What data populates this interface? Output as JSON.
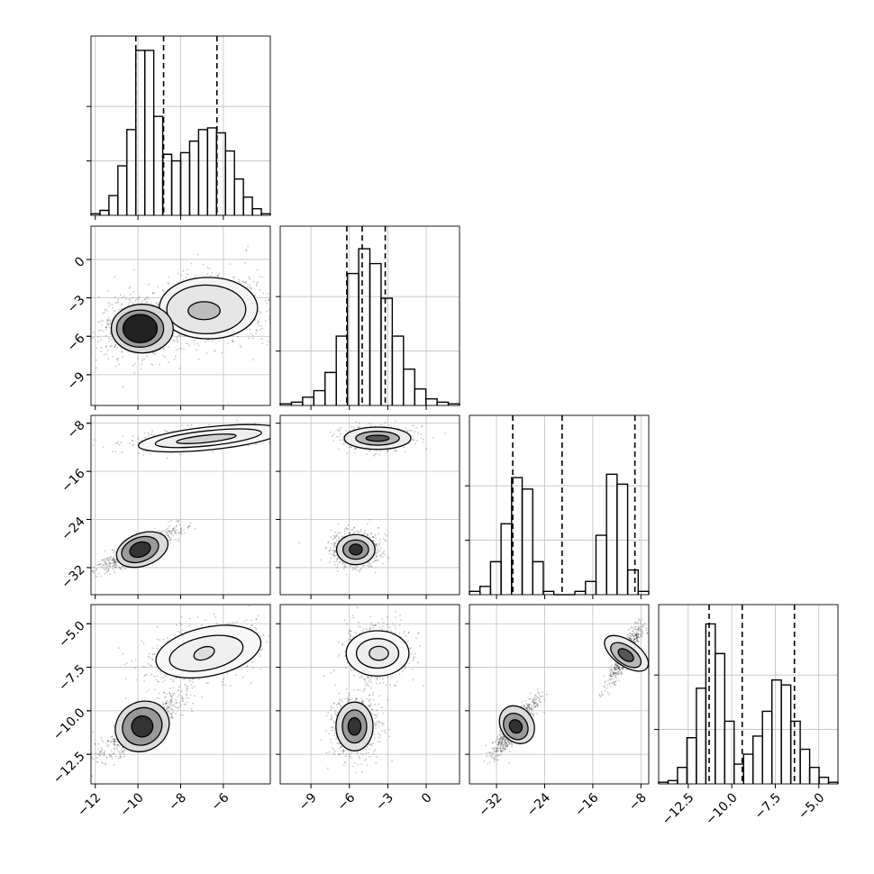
{
  "chart_data": {
    "type": "corner",
    "parameters": [
      {
        "ticks": [
          -12,
          -10,
          -8,
          -6
        ],
        "tick_labels": [
          "−12",
          "−10",
          "−8",
          "−6"
        ],
        "range": [
          -12.2,
          -3.8
        ],
        "quantiles": [
          -10.1,
          -8.8,
          -6.3
        ],
        "histogram": [
          0.01,
          0.03,
          0.12,
          0.3,
          0.52,
          1.0,
          1.0,
          0.6,
          0.37,
          0.33,
          0.38,
          0.45,
          0.52,
          0.53,
          0.5,
          0.39,
          0.22,
          0.11,
          0.04,
          0.01
        ]
      },
      {
        "ticks": [
          -9,
          -6,
          -3,
          0
        ],
        "tick_labels": [
          "−9",
          "−6",
          "−3",
          "0"
        ],
        "range": [
          -11.4,
          2.6
        ],
        "quantiles": [
          -6.2,
          -5.0,
          -3.2
        ],
        "histogram": [
          0.01,
          0.02,
          0.05,
          0.09,
          0.2,
          0.42,
          0.8,
          0.95,
          0.86,
          0.65,
          0.42,
          0.22,
          0.1,
          0.04,
          0.02,
          0.01
        ]
      },
      {
        "ticks": [
          -32,
          -24,
          -16,
          -8
        ],
        "tick_labels": [
          "−32",
          "−24",
          "−16",
          "−8"
        ],
        "range": [
          -36.5,
          -6.7
        ],
        "quantiles": [
          -29.3,
          -21.1,
          -9.0
        ],
        "histogram": [
          0.02,
          0.05,
          0.2,
          0.43,
          0.71,
          0.64,
          0.2,
          0.02,
          0,
          0,
          0.02,
          0.08,
          0.36,
          0.73,
          0.67,
          0.15,
          0.02
        ]
      },
      {
        "ticks": [
          -12.5,
          -10,
          -7.5,
          -5
        ],
        "tick_labels": [
          "−12.5",
          "−10.0",
          "−7.5",
          "−5.0"
        ],
        "range": [
          -14.2,
          -3.9
        ],
        "quantiles": [
          -11.3,
          -9.4,
          -6.4
        ],
        "histogram": [
          0.01,
          0.02,
          0.1,
          0.28,
          0.58,
          0.97,
          0.79,
          0.38,
          0.12,
          0.18,
          0.29,
          0.44,
          0.63,
          0.6,
          0.38,
          0.21,
          0.1,
          0.04,
          0.01
        ]
      }
    ],
    "pairs": [
      {
        "row": 1,
        "col": 0,
        "modes": [
          {
            "x": -10.0,
            "y": -5.4,
            "sx": 0.75,
            "sy": 1.05,
            "rho": 0,
            "w": 0.55
          },
          {
            "x": -6.6,
            "y": -3.8,
            "sx": 1.25,
            "sy": 1.25,
            "rho": 0.1,
            "w": 0.45
          }
        ],
        "contours": [
          {
            "x": -9.9,
            "y": -5.4,
            "ax": 0.8,
            "ay": 1.1,
            "rot": 0,
            "fill": "#222222"
          },
          {
            "x": -9.9,
            "y": -5.4,
            "ax": 1.1,
            "ay": 1.45,
            "rot": 0,
            "fill": "#9a9a9a"
          },
          {
            "x": -9.8,
            "y": -5.4,
            "ax": 1.45,
            "ay": 1.9,
            "rot": 0,
            "fill": "#d8d8d8"
          },
          {
            "x": -6.9,
            "y": -4.0,
            "ax": 0.75,
            "ay": 0.7,
            "rot": 0,
            "fill": "#bcbcbc"
          },
          {
            "x": -6.8,
            "y": -3.9,
            "ax": 1.85,
            "ay": 1.9,
            "rot": 0,
            "fill": "#e6e6e6"
          },
          {
            "x": -6.7,
            "y": -3.8,
            "ax": 2.3,
            "ay": 2.4,
            "rot": 0,
            "fill": "#f4f4f4"
          }
        ]
      },
      {
        "row": 2,
        "col": 0,
        "modes": [
          {
            "x": -10.0,
            "y": -29.0,
            "sx": 0.85,
            "sy": 1.6,
            "rho": 0.9,
            "w": 0.55
          },
          {
            "x": -6.8,
            "y": -10.5,
            "sx": 1.5,
            "sy": 0.9,
            "rho": 0.45,
            "w": 0.45
          }
        ],
        "contours": [
          {
            "x": -9.9,
            "y": -29.0,
            "ax": 0.5,
            "ay": 1.2,
            "rot": 20,
            "fill": "#333333"
          },
          {
            "x": -9.9,
            "y": -29.0,
            "ax": 0.9,
            "ay": 2.0,
            "rot": 20,
            "fill": "#9a9a9a"
          },
          {
            "x": -9.8,
            "y": -29.0,
            "ax": 1.25,
            "ay": 2.7,
            "rot": 20,
            "fill": "#dadada"
          },
          {
            "x": -6.8,
            "y": -10.6,
            "ax": 1.4,
            "ay": 0.6,
            "rot": 6,
            "fill": "#d3d3d3"
          },
          {
            "x": -6.7,
            "y": -10.5,
            "ax": 2.5,
            "ay": 1.25,
            "rot": 6,
            "fill": "#eeeeee"
          },
          {
            "x": -6.6,
            "y": -10.5,
            "ax": 3.4,
            "ay": 1.9,
            "rot": 6,
            "fill": "#f7f7f7"
          }
        ]
      },
      {
        "row": 2,
        "col": 1,
        "modes": [
          {
            "x": -5.5,
            "y": -29.0,
            "sx": 0.8,
            "sy": 1.3,
            "rho": 0,
            "w": 0.55
          },
          {
            "x": -3.8,
            "y": -10.5,
            "sx": 1.2,
            "sy": 0.85,
            "rho": 0,
            "w": 0.45
          }
        ],
        "contours": [
          {
            "x": -5.5,
            "y": -29.0,
            "ax": 0.5,
            "ay": 0.9,
            "rot": 0,
            "fill": "#333333"
          },
          {
            "x": -5.5,
            "y": -29.0,
            "ax": 1.0,
            "ay": 1.6,
            "rot": 0,
            "fill": "#9a9a9a"
          },
          {
            "x": -5.5,
            "y": -29.0,
            "ax": 1.5,
            "ay": 2.5,
            "rot": 0,
            "fill": "#dedede"
          },
          {
            "x": -3.8,
            "y": -10.5,
            "ax": 0.9,
            "ay": 0.5,
            "rot": 0,
            "fill": "#555555"
          },
          {
            "x": -3.8,
            "y": -10.5,
            "ax": 1.7,
            "ay": 1.15,
            "rot": 0,
            "fill": "#b4b4b4"
          },
          {
            "x": -3.8,
            "y": -10.5,
            "ax": 2.6,
            "ay": 1.85,
            "rot": 0,
            "fill": "#ececec"
          }
        ]
      },
      {
        "row": 3,
        "col": 0,
        "modes": [
          {
            "x": -9.8,
            "y": -10.9,
            "sx": 0.85,
            "sy": 0.8,
            "rho": 0.85,
            "w": 0.55
          },
          {
            "x": -6.8,
            "y": -6.7,
            "sx": 1.4,
            "sy": 0.8,
            "rho": 0.4,
            "w": 0.45
          }
        ],
        "contours": [
          {
            "x": -9.8,
            "y": -10.9,
            "ax": 0.5,
            "ay": 0.6,
            "rot": 30,
            "fill": "#333333"
          },
          {
            "x": -9.8,
            "y": -10.9,
            "ax": 0.95,
            "ay": 1.05,
            "rot": 30,
            "fill": "#999999"
          },
          {
            "x": -9.8,
            "y": -10.9,
            "ax": 1.3,
            "ay": 1.4,
            "rot": 30,
            "fill": "#dcdcdc"
          },
          {
            "x": -6.9,
            "y": -6.7,
            "ax": 0.5,
            "ay": 0.35,
            "rot": 20,
            "fill": "#dddddd"
          },
          {
            "x": -6.8,
            "y": -6.7,
            "ax": 1.75,
            "ay": 0.95,
            "rot": 12,
            "fill": "#efefef"
          },
          {
            "x": -6.7,
            "y": -6.6,
            "ax": 2.5,
            "ay": 1.4,
            "rot": 12,
            "fill": "#f8f8f8"
          }
        ]
      },
      {
        "row": 3,
        "col": 1,
        "modes": [
          {
            "x": -5.6,
            "y": -10.9,
            "sx": 0.8,
            "sy": 0.75,
            "rho": 0,
            "w": 0.55
          },
          {
            "x": -3.8,
            "y": -6.7,
            "sx": 1.1,
            "sy": 0.75,
            "rho": 0,
            "w": 0.45
          }
        ],
        "contours": [
          {
            "x": -5.6,
            "y": -10.9,
            "ax": 0.5,
            "ay": 0.5,
            "rot": 0,
            "fill": "#333333"
          },
          {
            "x": -5.6,
            "y": -10.9,
            "ax": 0.95,
            "ay": 0.95,
            "rot": 0,
            "fill": "#999999"
          },
          {
            "x": -5.6,
            "y": -10.9,
            "ax": 1.45,
            "ay": 1.4,
            "rot": 0,
            "fill": "#dedede"
          },
          {
            "x": -3.7,
            "y": -6.7,
            "ax": 0.75,
            "ay": 0.4,
            "rot": 0,
            "fill": "#dddddd"
          },
          {
            "x": -3.8,
            "y": -6.7,
            "ax": 1.65,
            "ay": 0.85,
            "rot": 0,
            "fill": "#eeeeee"
          },
          {
            "x": -3.8,
            "y": -6.7,
            "ax": 2.45,
            "ay": 1.3,
            "rot": 0,
            "fill": "#f8f8f8"
          }
        ]
      },
      {
        "row": 3,
        "col": 2,
        "modes": [
          {
            "x": -28.8,
            "y": -10.9,
            "sx": 1.6,
            "sy": 0.7,
            "rho": 0.9,
            "w": 0.55
          },
          {
            "x": -10.5,
            "y": -6.7,
            "sx": 1.3,
            "sy": 0.8,
            "rho": 0.9,
            "w": 0.45
          }
        ],
        "contours": [
          {
            "x": -28.8,
            "y": -10.9,
            "ax": 1.0,
            "ay": 0.4,
            "rot": 35,
            "fill": "#333333"
          },
          {
            "x": -28.8,
            "y": -10.9,
            "ax": 1.9,
            "ay": 0.8,
            "rot": 35,
            "fill": "#999999"
          },
          {
            "x": -28.6,
            "y": -10.8,
            "ax": 2.7,
            "ay": 1.15,
            "rot": 35,
            "fill": "#dcdcdc"
          },
          {
            "x": -10.5,
            "y": -6.8,
            "ax": 0.8,
            "ay": 0.5,
            "rot": 55,
            "fill": "#555555"
          },
          {
            "x": -10.5,
            "y": -6.8,
            "ax": 1.5,
            "ay": 1.0,
            "rot": 55,
            "fill": "#b8b8b8"
          },
          {
            "x": -10.4,
            "y": -6.7,
            "ax": 2.1,
            "ay": 1.45,
            "rot": 55,
            "fill": "#ececec"
          }
        ]
      }
    ]
  }
}
